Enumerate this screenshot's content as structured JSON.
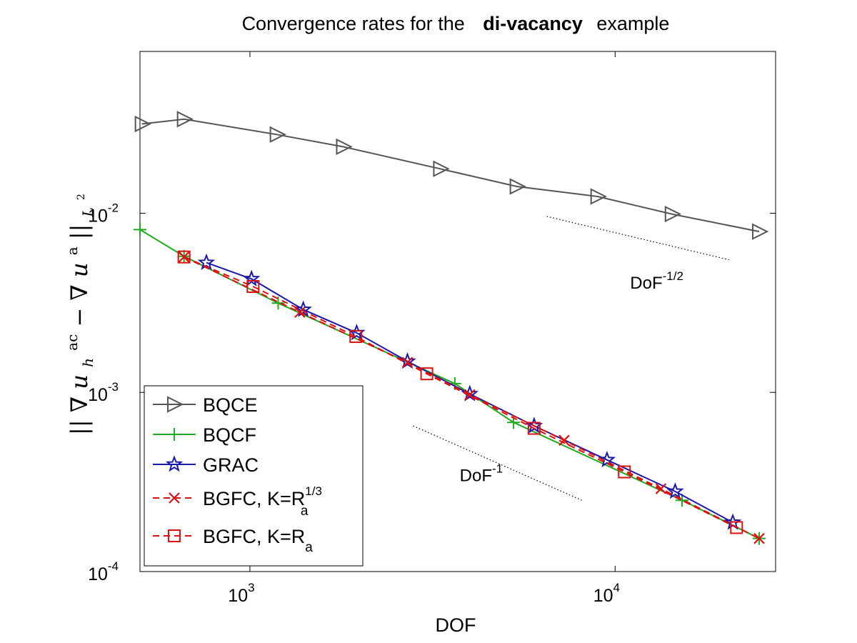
{
  "chart_data": {
    "type": "line",
    "title_prefix": "Convergence rates for the",
    "title_bold": "di-vacancy",
    "title_suffix": "example",
    "xlabel": "DOF",
    "ylabel": "||∇u_h^ac − ∇u^a||_L²",
    "ylabel_parts": {
      "norm_open": "||",
      "nabla1": "∇",
      "u1": "u",
      "sub_h": "h",
      "sup_ac": "ac",
      "minus": " − ",
      "nabla2": "∇",
      "u2": "u",
      "sup_a": "a",
      "norm_close": "||",
      "sub_L": "L",
      "sup_2": "2"
    },
    "xscale": "log",
    "yscale": "log",
    "xlim": [
      500,
      27500
    ],
    "ylim": [
      0.0001,
      0.08
    ],
    "xticks": [
      {
        "value": 1000,
        "base": "10",
        "exp": "3"
      },
      {
        "value": 10000,
        "base": "10",
        "exp": "4"
      }
    ],
    "yticks": [
      {
        "value": 0.0001,
        "base": "10",
        "exp": "-4"
      },
      {
        "value": 0.001,
        "base": "10",
        "exp": "-3"
      },
      {
        "value": 0.01,
        "base": "10",
        "exp": "-2"
      }
    ],
    "legend_position": "bottom-left",
    "series": [
      {
        "name": "BQCE",
        "color": "#555555",
        "dash": "solid",
        "marker": "triangle-right",
        "x": [
          506,
          660,
          1185,
          1800,
          3320,
          5380,
          8950,
          14300,
          24800
        ],
        "y": [
          0.0315,
          0.0335,
          0.0275,
          0.0235,
          0.0177,
          0.0141,
          0.0124,
          0.0099,
          0.0079
        ]
      },
      {
        "name": "BQCF",
        "color": "#22aa22",
        "dash": "solid",
        "marker": "plus",
        "x": [
          500,
          660,
          1195,
          3640,
          5270,
          15250,
          24800
        ],
        "y": [
          0.0081,
          0.00575,
          0.00315,
          0.00112,
          0.00068,
          0.00025,
          0.000153
        ]
      },
      {
        "name": "GRAC",
        "color": "#1a1aaa",
        "dash": "solid",
        "marker": "star",
        "x": [
          760,
          1010,
          1400,
          1960,
          2700,
          4000,
          6000,
          9500,
          14600,
          21000
        ],
        "y": [
          0.0053,
          0.0043,
          0.0029,
          0.00215,
          0.00149,
          0.00098,
          0.00065,
          0.00042,
          0.00028,
          0.000188
        ]
      },
      {
        "name": "BGFC, K=R_a^1/3",
        "label_main": "BGFC, K=R",
        "label_sub": "a",
        "label_sup": "1/3",
        "color": "#dd1111",
        "dash": "dashed",
        "marker": "x",
        "x": [
          660,
          1370,
          2700,
          4000,
          7250,
          13350,
          24800
        ],
        "y": [
          0.0057,
          0.0028,
          0.00147,
          0.00097,
          0.00054,
          0.00029,
          0.000153
        ]
      },
      {
        "name": "BGFC, K=R_a",
        "label_main": "BGFC, K=R",
        "label_sub": "a",
        "label_sup": "",
        "color": "#dd1111",
        "dash": "dashed",
        "marker": "square",
        "x": [
          660,
          1020,
          1950,
          3050,
          6000,
          10600,
          21500
        ],
        "y": [
          0.0057,
          0.0039,
          0.00205,
          0.00127,
          0.00063,
          0.00036,
          0.000176
        ]
      }
    ],
    "reference_lines": [
      {
        "label": "DoF",
        "exp": "-1/2",
        "x": [
          6500,
          20500
        ],
        "y": [
          0.0096,
          0.0055
        ]
      },
      {
        "label": "DoF",
        "exp": "-1",
        "x": [
          2800,
          8100
        ],
        "y": [
          0.00065,
          0.00025
        ]
      }
    ],
    "reference_label_positions": [
      {
        "x": 13000,
        "y": 0.0038
      },
      {
        "x": 4300,
        "y": 0.00032
      }
    ]
  }
}
